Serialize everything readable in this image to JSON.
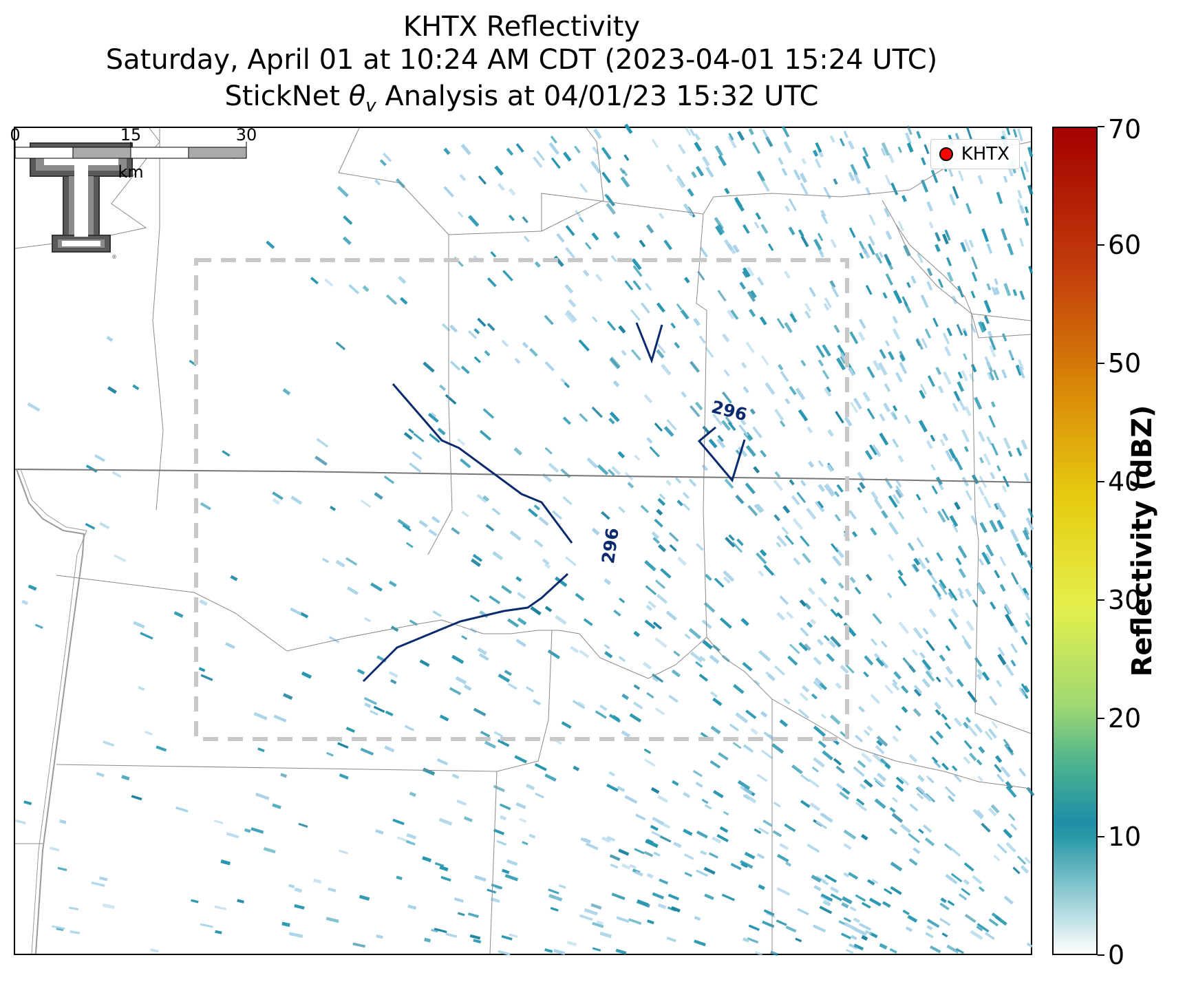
{
  "titles": {
    "line1": "KHTX Reflectivity",
    "line2": "Saturday, April 01 at 10:24 AM CDT (2023-04-01 15:24 UTC)",
    "line3": "StickNet θv Analysis at 04/01/23 15:32 UTC"
  },
  "legend": {
    "label": "KHTX",
    "marker_color": "#ff0000"
  },
  "contours": {
    "label": "296",
    "color": "#0a2a6e"
  },
  "scalebar": {
    "ticks": [
      "0",
      "15",
      "30"
    ],
    "unit": "km"
  },
  "colorbar": {
    "title": "Reflectivity (dBZ)",
    "ticks": [
      "0",
      "10",
      "20",
      "30",
      "40",
      "50",
      "60",
      "70"
    ],
    "min": 0,
    "max": 70
  },
  "logo": {
    "text": "T",
    "color": "#5a5a5a"
  },
  "colors": {
    "reflectivity_low": "#a8d3e8",
    "reflectivity_mid": "#2796b0",
    "analysis_box": "#c8c8c8",
    "boundaries": "#888888"
  }
}
